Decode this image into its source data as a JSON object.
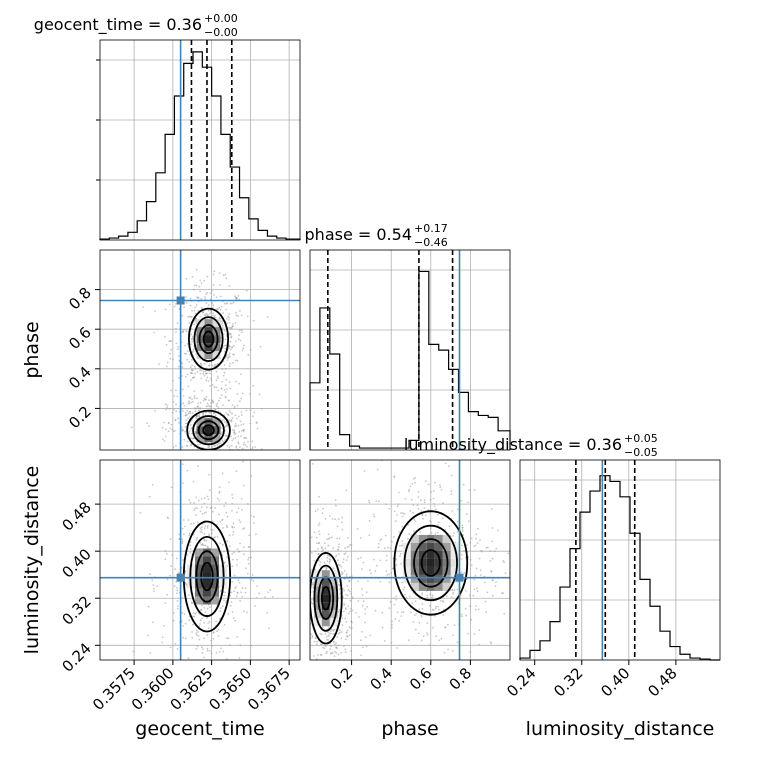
{
  "colors": {
    "truth": "#4682b4",
    "hist": "#000000",
    "grid": "#b0b0b0",
    "points": "#9a9a9a"
  },
  "chart_data": {
    "type": "corner",
    "parameters": [
      "geocent_time",
      "phase",
      "luminosity_distance"
    ],
    "truths": {
      "geocent_time": 0.3605,
      "phase": 0.745,
      "luminosity_distance": 0.355
    },
    "titles": [
      {
        "param": "geocent_time",
        "median": "0.36",
        "plus": "+0.00",
        "minus": "−0.00"
      },
      {
        "param": "phase",
        "median": "0.54",
        "plus": "+0.17",
        "minus": "−0.46"
      },
      {
        "param": "luminosity_distance",
        "median": "0.36",
        "plus": "+0.05",
        "minus": "−0.05"
      }
    ],
    "axis_labels": {
      "geocent_time": "geocent_time",
      "phase": "phase",
      "luminosity_distance": "luminosity_distance"
    },
    "ranges": {
      "geocent_time": [
        0.3553,
        0.3682
      ],
      "phase": [
        -0.01,
        1.0
      ],
      "luminosity_distance": [
        0.215,
        0.555
      ]
    },
    "ticks": {
      "geocent_time": [
        0.3575,
        0.36,
        0.3625,
        0.365,
        0.3675
      ],
      "phase": [
        0.2,
        0.4,
        0.6,
        0.8
      ],
      "luminosity_distance": [
        0.24,
        0.32,
        0.4,
        0.48
      ]
    },
    "tick_labels": {
      "geocent_time": [
        "0.3575",
        "0.3600",
        "0.3625",
        "0.3650",
        "0.3675"
      ],
      "phase": [
        "0.2",
        "0.4",
        "0.6",
        "0.8"
      ],
      "luminosity_distance": [
        "0.24",
        "0.32",
        "0.40",
        "0.48"
      ]
    },
    "quantiles": {
      "geocent_time": [
        0.3612,
        0.3622,
        0.3638
      ],
      "phase": [
        0.08,
        0.54,
        0.71
      ],
      "luminosity_distance": [
        0.31,
        0.36,
        0.41
      ]
    },
    "histograms": {
      "geocent_time": {
        "edges": [
          0.3553,
          0.3559,
          0.3565,
          0.3571,
          0.3577,
          0.3583,
          0.3589,
          0.3595,
          0.3601,
          0.3607,
          0.3613,
          0.3619,
          0.3625,
          0.3631,
          0.3637,
          0.3643,
          0.3649,
          0.3655,
          0.3661,
          0.3667,
          0.3673,
          0.3682
        ],
        "counts": [
          0.005,
          0.01,
          0.02,
          0.04,
          0.1,
          0.2,
          0.35,
          0.55,
          0.75,
          0.92,
          0.98,
          0.9,
          0.75,
          0.55,
          0.38,
          0.22,
          0.11,
          0.05,
          0.02,
          0.01,
          0.005
        ]
      },
      "phase": {
        "edges": [
          -0.01,
          0.04,
          0.09,
          0.14,
          0.19,
          0.24,
          0.29,
          0.34,
          0.39,
          0.44,
          0.49,
          0.54,
          0.59,
          0.64,
          0.69,
          0.74,
          0.79,
          0.84,
          0.89,
          0.94,
          1.0
        ],
        "counts": [
          0.35,
          0.74,
          0.5,
          0.08,
          0.02,
          0.01,
          0.01,
          0.01,
          0.01,
          0.01,
          0.05,
          0.93,
          0.55,
          0.52,
          0.42,
          0.3,
          0.2,
          0.18,
          0.17,
          0.1
        ]
      },
      "luminosity_distance": {
        "edges": [
          0.215,
          0.232,
          0.249,
          0.266,
          0.283,
          0.3,
          0.317,
          0.334,
          0.351,
          0.368,
          0.385,
          0.402,
          0.419,
          0.436,
          0.453,
          0.47,
          0.487,
          0.504,
          0.521,
          0.538,
          0.555
        ],
        "counts": [
          0.01,
          0.05,
          0.1,
          0.2,
          0.38,
          0.58,
          0.77,
          0.88,
          0.96,
          0.93,
          0.85,
          0.66,
          0.42,
          0.28,
          0.15,
          0.07,
          0.03,
          0.01,
          0.005,
          0.0
        ]
      }
    },
    "contour_blobs": [
      {
        "x": "geocent_time",
        "y": "phase",
        "cx": 0.3623,
        "cy": 0.55,
        "rx": 0.0011,
        "ry": 0.14
      },
      {
        "x": "geocent_time",
        "y": "phase",
        "cx": 0.3623,
        "cy": 0.09,
        "rx": 0.0012,
        "ry": 0.09
      },
      {
        "x": "geocent_time",
        "y": "luminosity_distance",
        "cx": 0.3622,
        "cy": 0.357,
        "rx": 0.0013,
        "ry": 0.085
      },
      {
        "x": "phase",
        "y": "luminosity_distance",
        "cx": 0.6,
        "cy": 0.38,
        "rx": 0.16,
        "ry": 0.08
      },
      {
        "x": "phase",
        "y": "luminosity_distance",
        "cx": 0.07,
        "cy": 0.32,
        "rx": 0.07,
        "ry": 0.07
      }
    ]
  }
}
